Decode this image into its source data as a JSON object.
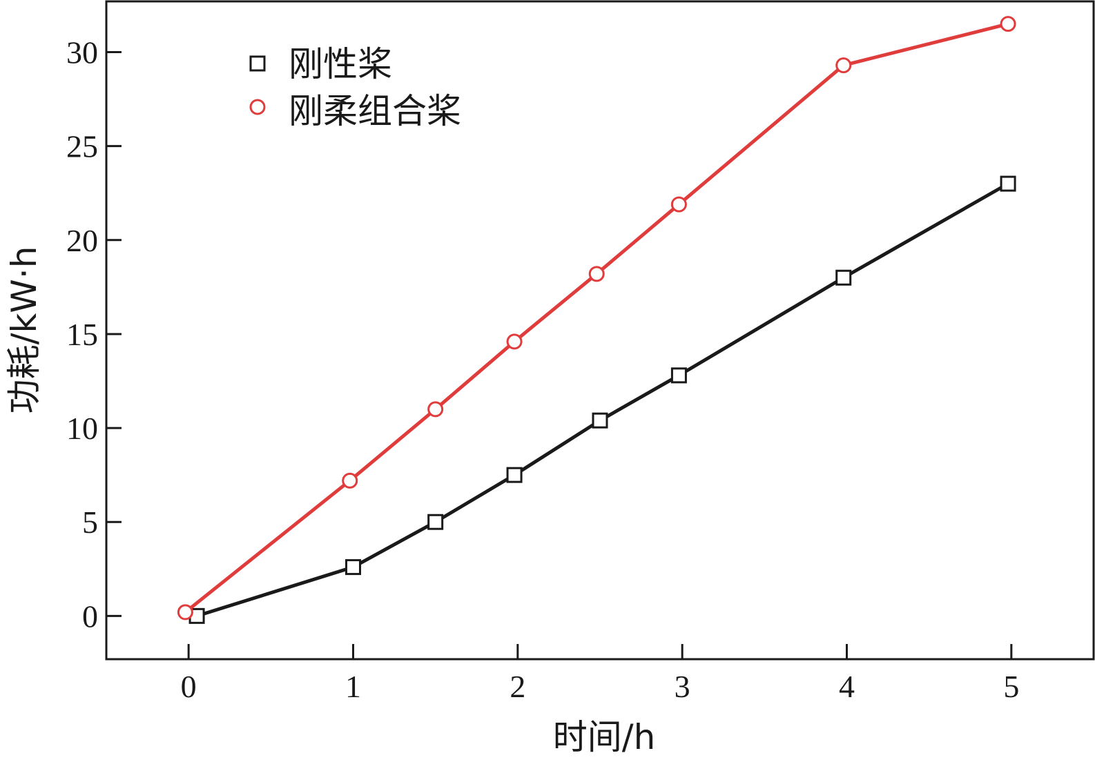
{
  "chart_data": {
    "type": "line",
    "xlabel": "时间/h",
    "ylabel": "功耗/kW·h",
    "xlim": [
      -0.5,
      5.5
    ],
    "ylim": [
      -2.3,
      32.7
    ],
    "xticks": [
      0,
      1,
      2,
      3,
      4,
      5
    ],
    "yticks": [
      0,
      5,
      10,
      15,
      20,
      25,
      30
    ],
    "grid": false,
    "legend_position": "top-left",
    "series": [
      {
        "name": "刚性桨",
        "marker": "square",
        "color": "#1a1a1a",
        "x": [
          0.05,
          1,
          1.5,
          1.98,
          2.5,
          2.98,
          3.98,
          4.98
        ],
        "y": [
          0.0,
          2.6,
          5.0,
          7.5,
          10.4,
          12.8,
          18.0,
          23.0
        ]
      },
      {
        "name": "刚柔组合桨",
        "marker": "circle",
        "color": "#e03c3c",
        "x": [
          -0.02,
          0.98,
          1.5,
          1.98,
          2.48,
          2.98,
          3.98,
          4.98
        ],
        "y": [
          0.2,
          7.2,
          11.0,
          14.6,
          18.2,
          21.9,
          29.3,
          31.5
        ]
      }
    ]
  }
}
